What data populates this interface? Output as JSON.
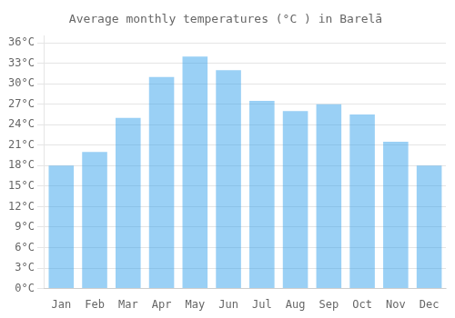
{
  "chart_data": {
    "type": "bar",
    "title": "Average monthly temperatures (°C ) in Barelā",
    "categories": [
      "Jan",
      "Feb",
      "Mar",
      "Apr",
      "May",
      "Jun",
      "Jul",
      "Aug",
      "Sep",
      "Oct",
      "Nov",
      "Dec"
    ],
    "values": [
      18,
      20,
      25,
      31,
      34,
      32,
      27.5,
      26,
      27,
      25.5,
      21.5,
      18
    ],
    "ylim": [
      0,
      37
    ],
    "yticks": [
      {
        "value": 0,
        "label": "0°C"
      },
      {
        "value": 3,
        "label": "3°C"
      },
      {
        "value": 6,
        "label": "6°C"
      },
      {
        "value": 9,
        "label": "9°C"
      },
      {
        "value": 12,
        "label": "12°C"
      },
      {
        "value": 15,
        "label": "15°C"
      },
      {
        "value": 18,
        "label": "18°C"
      },
      {
        "value": 21,
        "label": "21°C"
      },
      {
        "value": 24,
        "label": "24°C"
      },
      {
        "value": 27,
        "label": "27°C"
      },
      {
        "value": 30,
        "label": "30°C"
      },
      {
        "value": 33,
        "label": "33°C"
      },
      {
        "value": 36,
        "label": "36°C"
      }
    ],
    "grid": true
  }
}
